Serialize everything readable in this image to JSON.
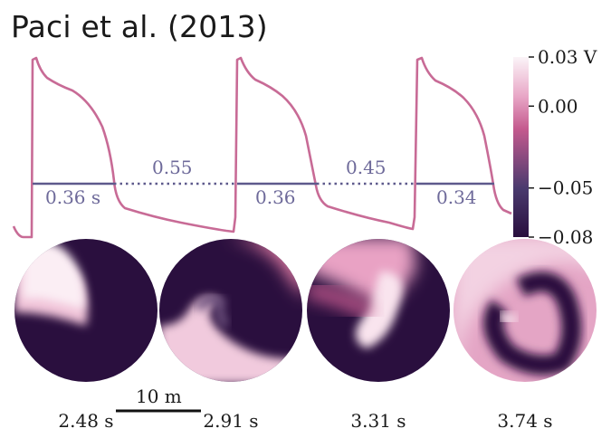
{
  "title": "Paci et al. (2013)",
  "trace": {
    "apd_labels": [
      "0.36 s",
      "0.36",
      "0.34"
    ],
    "di_labels": [
      "0.55",
      "0.45"
    ],
    "colors": {
      "trace": "#c86b96",
      "apd_line": "#5e5a8c",
      "label": "#6e6a9a"
    }
  },
  "colorbar": {
    "ticks": [
      {
        "value": 0.03,
        "label": "0.03 V"
      },
      {
        "value": 0.0,
        "label": "0.00"
      },
      {
        "value": -0.05,
        "label": "−0.05"
      },
      {
        "value": -0.08,
        "label": "−0.08"
      }
    ],
    "range": [
      -0.08,
      0.03
    ],
    "colormap": [
      "#2a0f3e",
      "#4a3a6e",
      "#d86fa0",
      "#f7dcea",
      "#fbf4f8"
    ]
  },
  "snapshots": [
    {
      "time": "2.48 s"
    },
    {
      "time": "2.91 s"
    },
    {
      "time": "3.31 s"
    },
    {
      "time": "3.74 s"
    }
  ],
  "scale_bar": {
    "label": "10 m"
  }
}
